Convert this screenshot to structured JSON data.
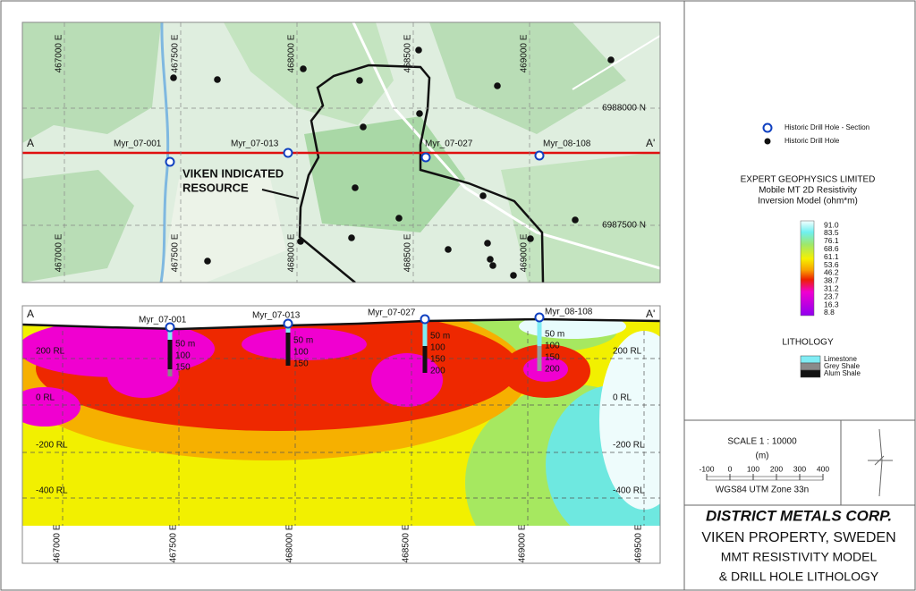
{
  "map": {
    "eastings": [
      "467000 E",
      "467500 E",
      "468000 E",
      "468500 E",
      "469000 E"
    ],
    "northings": [
      "6988000 N",
      "6987500 N"
    ],
    "section_ends": [
      "A",
      "A'"
    ],
    "holes": [
      "Myr_07-001",
      "Myr_07-013",
      "Myr_07-027",
      "Myr_08-108"
    ],
    "resource_label": [
      "VIKEN INDICATED",
      "RESOURCE"
    ]
  },
  "section": {
    "section_ends": [
      "A",
      "A'"
    ],
    "holes": [
      "Myr_07-001",
      "Myr_07-013",
      "Myr_07-027",
      "Myr_08-108"
    ],
    "depth_labels": [
      [
        "50 m",
        "100",
        "150"
      ],
      [
        "50 m",
        "100",
        "150"
      ],
      [
        "50 m",
        "100",
        "150",
        "200"
      ],
      [
        "50 m",
        "100",
        "150",
        "200"
      ]
    ],
    "rl_labels": [
      "200 RL",
      "0 RL",
      "-200 RL",
      "-400 RL"
    ],
    "eastings": [
      "467000 E",
      "467500 E",
      "468000 E",
      "468500 E",
      "469000 E",
      "469500 E"
    ]
  },
  "legend": {
    "items": [
      "Historic Drill Hole - Section",
      "Historic Drill Hole"
    ]
  },
  "resistivity": {
    "title": [
      "EXPERT GEOPHYSICS LIMITED",
      "Mobile MT 2D Resistivity",
      "Inversion Model (ohm*m)"
    ],
    "scale": [
      "91.0",
      "83.5",
      "76.1",
      "68.6",
      "61.1",
      "53.6",
      "46.2",
      "38.7",
      "31.2",
      "23.7",
      "16.3",
      "8.8"
    ]
  },
  "lithology": {
    "title": "LITHOLOGY",
    "items": [
      "Limestone",
      "Grey Shale",
      "Alum Shale"
    ]
  },
  "scale_bar": {
    "label": "SCALE  1 : 10000",
    "unit": "(m)",
    "ticks": [
      "-100",
      "0",
      "100",
      "200",
      "300",
      "400"
    ],
    "datum": "WGS84 UTM Zone 33n"
  },
  "title_block": {
    "company": "DISTRICT METALS CORP.",
    "lines": [
      "VIKEN PROPERTY, SWEDEN",
      "MMT RESISTIVITY MODEL",
      "& DRILL HOLE LITHOLOGY"
    ]
  }
}
